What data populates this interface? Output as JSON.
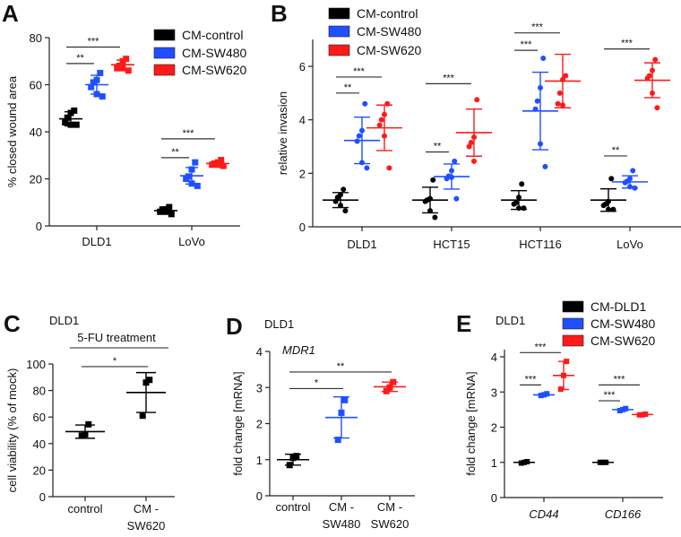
{
  "chart_data": [
    {
      "panel": "A",
      "type": "scatter",
      "marker": "square",
      "title": "",
      "subtitle": "",
      "ylabel": "% closed wound area",
      "ylim": [
        0,
        80
      ],
      "yticks": [
        0,
        20,
        40,
        60,
        80
      ],
      "categories": [
        [
          "DLD1"
        ],
        [
          "LoVo"
        ]
      ],
      "italic_categories": false,
      "legend": true,
      "series": [
        {
          "name": "CM-control",
          "color": "#000000",
          "values": [
            [
              49,
              48,
              46,
              44,
              43,
              43
            ],
            [
              8,
              7,
              7,
              6,
              6,
              5
            ]
          ],
          "mean": [
            45.5,
            6.5
          ],
          "sd": [
            3,
            1.2
          ]
        },
        {
          "name": "CM-SW480",
          "color": "#1f4fff",
          "values": [
            [
              65,
              62,
              61,
              59,
              56,
              55
            ],
            [
              27,
              24,
              21,
              20,
              18,
              17
            ]
          ],
          "mean": [
            60,
            21.3
          ],
          "sd": [
            4,
            3.5
          ]
        },
        {
          "name": "CM-SW620",
          "color": "#ff1a1a",
          "values": [
            [
              71,
              70,
              68,
              67,
              67,
              66
            ],
            [
              28,
              27,
              26.5,
              26,
              26,
              25.5
            ]
          ],
          "mean": [
            68.5,
            26.5
          ],
          "sd": [
            2,
            0.9
          ]
        }
      ],
      "significance": [
        {
          "category": 0,
          "from": 0,
          "to": 1,
          "label": "**",
          "y": 69
        },
        {
          "category": 0,
          "from": 0,
          "to": 2,
          "label": "***",
          "y": 76
        },
        {
          "category": 1,
          "from": 0,
          "to": 1,
          "label": "**",
          "y": 29
        },
        {
          "category": 1,
          "from": 0,
          "to": 2,
          "label": "***",
          "y": 37
        }
      ]
    },
    {
      "panel": "B",
      "type": "scatter",
      "marker": "circle",
      "title": "",
      "subtitle": "",
      "ylabel": "relative invasion",
      "ylim": [
        0,
        7
      ],
      "yticks": [
        0,
        2,
        4,
        6
      ],
      "categories": [
        [
          "DLD1"
        ],
        [
          "HCT15"
        ],
        [
          "HCT116"
        ],
        [
          "LoVo"
        ]
      ],
      "italic_categories": false,
      "legend": true,
      "series": [
        {
          "name": "CM-control",
          "color": "#000000",
          "values": [
            [
              1.4,
              1.2,
              1.1,
              0.95,
              0.8,
              0.6
            ],
            [
              1.75,
              1.05,
              1.0,
              0.95,
              0.6,
              0.35
            ],
            [
              1.6,
              1.1,
              0.9,
              0.85,
              0.7,
              0.7
            ],
            [
              1.8,
              0.95,
              0.85,
              0.8,
              0.65,
              0.65
            ]
          ],
          "mean": [
            1.0,
            1.0,
            1.0,
            1.0
          ],
          "sd": [
            0.28,
            0.48,
            0.35,
            0.42
          ]
        },
        {
          "name": "CM-SW480",
          "color": "#1f4fff",
          "values": [
            [
              4.6,
              3.6,
              3.4,
              3.2,
              2.4,
              2.2
            ],
            [
              2.45,
              2.1,
              1.9,
              1.8,
              1.85,
              1.05
            ],
            [
              6.3,
              5.2,
              4.7,
              4.4,
              3.1,
              2.25
            ],
            [
              2.1,
              1.8,
              1.7,
              1.65,
              1.5,
              1.45
            ]
          ],
          "mean": [
            3.23,
            1.88,
            4.33,
            1.68
          ],
          "sd": [
            0.87,
            0.47,
            1.45,
            0.23
          ]
        },
        {
          "name": "CM-SW620",
          "color": "#ff1a1a",
          "values": [
            [
              4.6,
              4.2,
              4.0,
              3.8,
              3.4,
              2.2
            ],
            [
              4.75,
              3.35,
              3.15,
              3.0,
              2.45
            ],
            [
              5.65,
              5.5,
              5.0,
              4.6,
              4.55
            ],
            [
              6.25,
              5.85,
              5.65,
              5.55,
              5.0,
              4.45
            ]
          ],
          "mean": [
            3.7,
            3.52,
            5.45,
            5.48
          ],
          "sd": [
            0.85,
            0.88,
            1.0,
            0.65
          ]
        }
      ],
      "significance": [
        {
          "category": 0,
          "from": 0,
          "to": 1,
          "label": "**",
          "y": 5.0
        },
        {
          "category": 0,
          "from": 0,
          "to": 2,
          "label": "***",
          "y": 5.6
        },
        {
          "category": 1,
          "from": 0,
          "to": 1,
          "label": "**",
          "y": 2.8
        },
        {
          "category": 1,
          "from": 0,
          "to": 2,
          "label": "***",
          "y": 5.35
        },
        {
          "category": 2,
          "from": 0,
          "to": 1,
          "label": "***",
          "y": 6.6
        },
        {
          "category": 2,
          "from": 0,
          "to": 2,
          "label": "***",
          "y": 7.25
        },
        {
          "category": 3,
          "from": 0,
          "to": 1,
          "label": "**",
          "y": 2.65
        },
        {
          "category": 3,
          "from": 0,
          "to": 2,
          "label": "***",
          "y": 6.65
        }
      ]
    },
    {
      "panel": "C",
      "type": "scatter",
      "marker": "square",
      "title": "DLD1",
      "subtitle": "5-FU treatment",
      "ylabel": "cell viability (% of mock)",
      "ylim": [
        0,
        100
      ],
      "yticks": [
        0,
        20,
        40,
        60,
        80,
        100
      ],
      "categories": [
        [
          "control"
        ],
        [
          "CM -",
          "SW620"
        ]
      ],
      "italic_categories": false,
      "legend": false,
      "series": [
        {
          "colors": [
            "#000000",
            "#000000"
          ],
          "values": [
            [
              54.5,
              47,
              46
            ],
            [
              88,
              86,
              61
            ]
          ],
          "mean": [
            49,
            78.5
          ],
          "sd": [
            5,
            15
          ]
        }
      ],
      "significance": [
        {
          "from_category": 0,
          "to_category": 1,
          "label": "*",
          "y": 98
        }
      ]
    },
    {
      "panel": "D",
      "type": "scatter",
      "marker": "square",
      "title": "DLD1",
      "subtitle": "MDR1",
      "ylabel": "fold change [mRNA]",
      "ylim": [
        0,
        4
      ],
      "yticks": [
        0,
        1,
        2,
        3,
        4
      ],
      "categories": [
        [
          "control"
        ],
        [
          "CM -",
          "SW480"
        ],
        [
          "CM -",
          "SW620"
        ]
      ],
      "italic_categories": false,
      "legend": false,
      "series": [
        {
          "colors": [
            "#000000",
            "#1f4fff",
            "#ff1a1a"
          ],
          "values": [
            [
              1.1,
              1.05,
              0.85
            ],
            [
              2.65,
              2.3,
              1.55
            ],
            [
              3.15,
              3.0,
              2.9
            ]
          ],
          "mean": [
            1.0,
            2.17,
            3.02
          ],
          "sd": [
            0.15,
            0.57,
            0.13
          ]
        }
      ],
      "significance": [
        {
          "from_category": 0,
          "to_category": 1,
          "label": "*",
          "y": 2.97
        },
        {
          "from_category": 0,
          "to_category": 2,
          "label": "**",
          "y": 3.43
        }
      ]
    },
    {
      "panel": "E",
      "type": "scatter",
      "marker": "square",
      "title": "DLD1",
      "subtitle": "",
      "ylabel": "fold change [mRNA]",
      "ylim": [
        0,
        4
      ],
      "yticks": [
        0,
        1,
        2,
        3,
        4
      ],
      "categories": [
        [
          "CD44"
        ],
        [
          "CD166"
        ]
      ],
      "italic_categories": true,
      "legend": true,
      "series": [
        {
          "name": "CM-DLD1",
          "color": "#000000",
          "values": [
            [
              1.02,
              1.0,
              0.98
            ],
            [
              1.0,
              1.0,
              1.0
            ]
          ],
          "mean": [
            1.0,
            1.0
          ],
          "sd": [
            0.02,
            0.01
          ]
        },
        {
          "name": "CM-SW480",
          "color": "#1f4fff",
          "values": [
            [
              2.95,
              2.92,
              2.9
            ],
            [
              2.53,
              2.5,
              2.47
            ]
          ],
          "mean": [
            2.92,
            2.5
          ],
          "sd": [
            0.03,
            0.03
          ]
        },
        {
          "name": "CM-SW620",
          "color": "#ff1a1a",
          "values": [
            [
              3.87,
              3.47,
              3.08
            ],
            [
              2.37,
              2.35,
              2.35
            ]
          ],
          "mean": [
            3.47,
            2.36
          ],
          "sd": [
            0.4,
            0.02
          ]
        }
      ],
      "significance": [
        {
          "category": 0,
          "from": 0,
          "to": 1,
          "label": "***",
          "y": 3.2
        },
        {
          "category": 0,
          "from": 0,
          "to": 2,
          "label": "***",
          "y": 4.12
        },
        {
          "category": 1,
          "from": 0,
          "to": 1,
          "label": "***",
          "y": 2.75
        },
        {
          "category": 1,
          "from": 0,
          "to": 2,
          "label": "***",
          "y": 3.2
        }
      ]
    }
  ]
}
